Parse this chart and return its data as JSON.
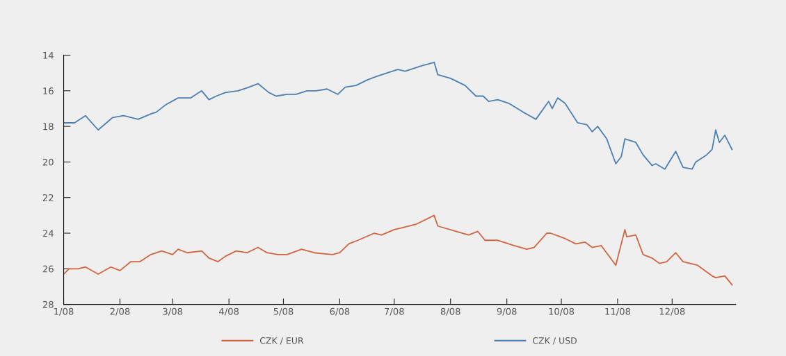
{
  "chart_data": {
    "type": "line",
    "xlim": [
      "2008-01-01",
      "2009-01-05"
    ],
    "ylim": [
      28,
      14
    ],
    "xticks": [
      {
        "value": "2008-01-01",
        "label": "1/08"
      },
      {
        "value": "2008-02-01",
        "label": "2/08"
      },
      {
        "value": "2008-03-01",
        "label": "3/08"
      },
      {
        "value": "2008-04-01",
        "label": "4/08"
      },
      {
        "value": "2008-05-01",
        "label": "5/08"
      },
      {
        "value": "2008-06-01",
        "label": "6/08"
      },
      {
        "value": "2008-07-01",
        "label": "7/08"
      },
      {
        "value": "2008-08-01",
        "label": "8/08"
      },
      {
        "value": "2008-09-01",
        "label": "9/08"
      },
      {
        "value": "2008-10-01",
        "label": "10/08"
      },
      {
        "value": "2008-11-01",
        "label": "11/08"
      },
      {
        "value": "2008-12-01",
        "label": "12/08"
      }
    ],
    "yticks": [
      14,
      16,
      18,
      20,
      22,
      24,
      26,
      28
    ],
    "grid": false,
    "legend": "bottom",
    "marker": "none",
    "line_style": "solid",
    "series": [
      {
        "name": "CZK / EUR",
        "color": "#d2643f",
        "x": [
          "2008-01-01",
          "2008-01-04",
          "2008-01-09",
          "2008-01-13",
          "2008-01-20",
          "2008-01-27",
          "2008-02-01",
          "2008-02-07",
          "2008-02-12",
          "2008-02-18",
          "2008-02-24",
          "2008-03-01",
          "2008-03-04",
          "2008-03-09",
          "2008-03-17",
          "2008-03-21",
          "2008-03-26",
          "2008-03-30",
          "2008-04-05",
          "2008-04-11",
          "2008-04-17",
          "2008-04-22",
          "2008-04-28",
          "2008-05-03",
          "2008-05-11",
          "2008-05-18",
          "2008-05-28",
          "2008-06-01",
          "2008-06-06",
          "2008-06-11",
          "2008-06-20",
          "2008-06-24",
          "2008-07-01",
          "2008-07-05",
          "2008-07-13",
          "2008-07-23",
          "2008-07-25",
          "2008-08-04",
          "2008-08-11",
          "2008-08-16",
          "2008-08-20",
          "2008-08-27",
          "2008-09-05",
          "2008-09-12",
          "2008-09-16",
          "2008-09-23",
          "2008-09-25",
          "2008-10-03",
          "2008-10-09",
          "2008-10-14",
          "2008-10-18",
          "2008-10-23",
          "2008-10-31",
          "2008-11-05",
          "2008-11-06",
          "2008-11-11",
          "2008-11-15",
          "2008-11-20",
          "2008-11-24",
          "2008-11-28",
          "2008-12-03",
          "2008-12-07",
          "2008-12-15",
          "2008-12-23",
          "2008-12-25",
          "2008-12-30",
          "2009-01-03"
        ],
        "values": [
          26.3,
          26.0,
          26.0,
          25.9,
          26.3,
          25.9,
          26.1,
          25.6,
          25.6,
          25.2,
          25.0,
          25.2,
          24.9,
          25.1,
          25.0,
          25.4,
          25.6,
          25.3,
          25.0,
          25.1,
          24.8,
          25.1,
          25.2,
          25.2,
          24.9,
          25.1,
          25.2,
          25.1,
          24.6,
          24.4,
          24.0,
          24.1,
          23.8,
          23.7,
          23.5,
          23.0,
          23.6,
          23.9,
          24.1,
          23.9,
          24.4,
          24.4,
          24.7,
          24.9,
          24.8,
          24.0,
          24.0,
          24.3,
          24.6,
          24.5,
          24.8,
          24.7,
          25.8,
          23.8,
          24.2,
          24.1,
          25.2,
          25.4,
          25.7,
          25.6,
          25.1,
          25.6,
          25.8,
          26.4,
          26.5,
          26.4,
          26.9
        ]
      },
      {
        "name": "CZK / USD",
        "color": "#4c7fb3",
        "x": [
          "2008-01-01",
          "2008-01-07",
          "2008-01-13",
          "2008-01-20",
          "2008-01-28",
          "2008-02-03",
          "2008-02-11",
          "2008-02-18",
          "2008-02-21",
          "2008-02-26",
          "2008-03-04",
          "2008-03-11",
          "2008-03-17",
          "2008-03-21",
          "2008-03-25",
          "2008-03-30",
          "2008-04-06",
          "2008-04-12",
          "2008-04-17",
          "2008-04-23",
          "2008-04-27",
          "2008-05-03",
          "2008-05-08",
          "2008-05-14",
          "2008-05-19",
          "2008-05-25",
          "2008-05-31",
          "2008-06-04",
          "2008-06-10",
          "2008-06-16",
          "2008-06-21",
          "2008-06-27",
          "2008-07-03",
          "2008-07-07",
          "2008-07-16",
          "2008-07-23",
          "2008-07-25",
          "2008-08-01",
          "2008-08-09",
          "2008-08-15",
          "2008-08-19",
          "2008-08-22",
          "2008-08-27",
          "2008-09-02",
          "2008-09-10",
          "2008-09-17",
          "2008-09-24",
          "2008-09-26",
          "2008-09-29",
          "2008-10-03",
          "2008-10-10",
          "2008-10-15",
          "2008-10-18",
          "2008-10-21",
          "2008-10-26",
          "2008-10-31",
          "2008-11-03",
          "2008-11-05",
          "2008-11-11",
          "2008-11-15",
          "2008-11-20",
          "2008-11-22",
          "2008-11-27",
          "2008-12-03",
          "2008-12-07",
          "2008-12-12",
          "2008-12-14",
          "2008-12-20",
          "2008-12-23",
          "2008-12-25",
          "2008-12-27",
          "2008-12-30",
          "2009-01-03"
        ],
        "values": [
          17.8,
          17.8,
          17.4,
          18.2,
          17.5,
          17.4,
          17.6,
          17.3,
          17.2,
          16.8,
          16.4,
          16.4,
          16.0,
          16.5,
          16.3,
          16.1,
          16.0,
          15.8,
          15.6,
          16.1,
          16.3,
          16.2,
          16.2,
          16.0,
          16.0,
          15.9,
          16.2,
          15.8,
          15.7,
          15.4,
          15.2,
          15.0,
          14.8,
          14.9,
          14.6,
          14.4,
          15.1,
          15.3,
          15.7,
          16.3,
          16.3,
          16.6,
          16.5,
          16.7,
          17.2,
          17.6,
          16.6,
          17.0,
          16.4,
          16.7,
          17.8,
          17.9,
          18.3,
          18.0,
          18.7,
          20.1,
          19.7,
          18.7,
          18.9,
          19.6,
          20.2,
          20.1,
          20.4,
          19.4,
          20.3,
          20.4,
          20.0,
          19.6,
          19.3,
          18.2,
          18.9,
          18.5,
          19.3
        ]
      }
    ]
  }
}
